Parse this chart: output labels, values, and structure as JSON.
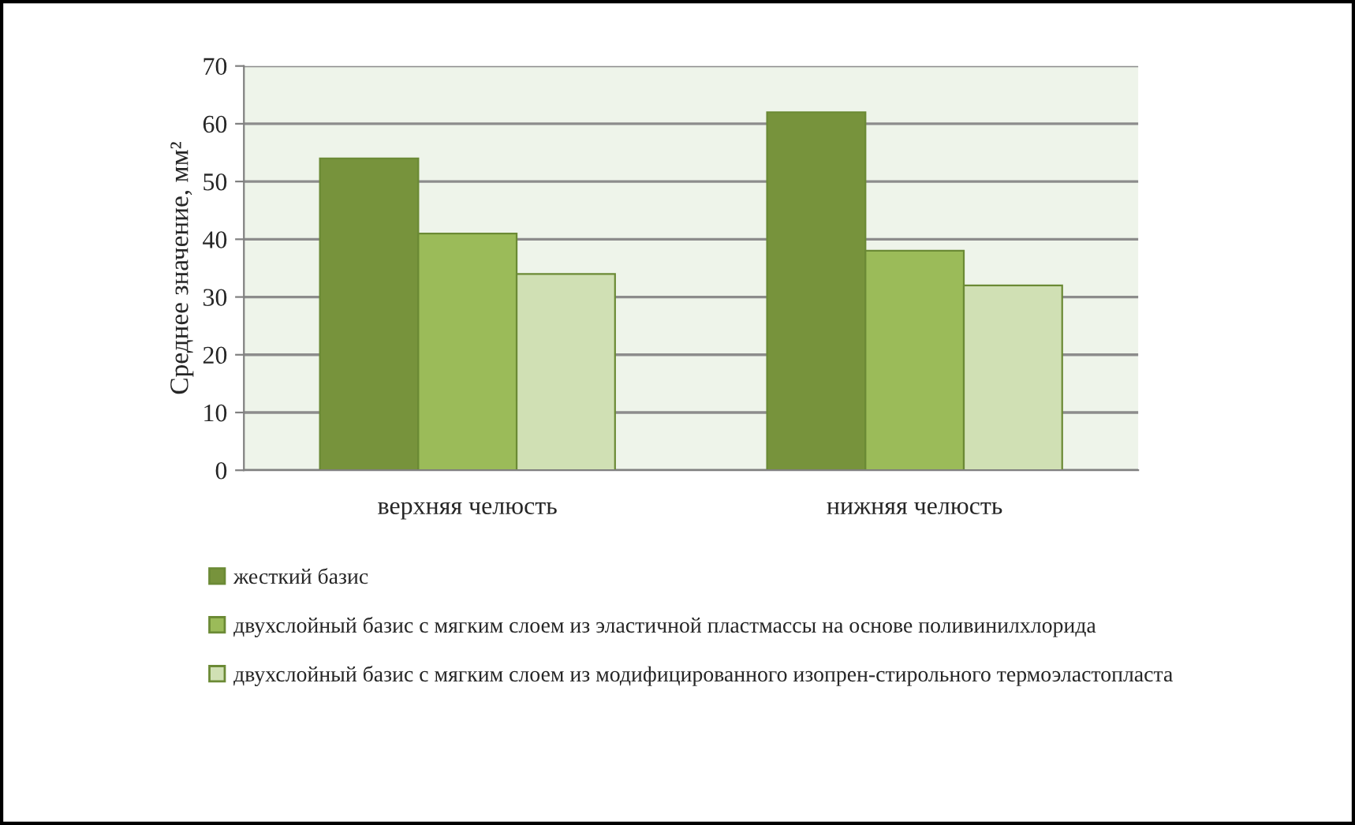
{
  "chart_data": {
    "type": "bar",
    "ylabel": "Среднее значение, мм²",
    "categories": [
      "верхняя челюсть",
      "нижняя челюсть"
    ],
    "series": [
      {
        "name": "жесткий базис",
        "color": "#77933c",
        "values": [
          54,
          62
        ]
      },
      {
        "name": "двухслойный базис с мягким слоем из эластичной пластмассы на основе поливинилхлорида",
        "color": "#9bbb59",
        "values": [
          41,
          38
        ]
      },
      {
        "name": "двухслойный базис с мягким слоем из модифицированного изопрен-стирольного термоэластопласта",
        "color": "#d0e0b4",
        "values": [
          34,
          32
        ]
      }
    ],
    "ylim": [
      0,
      70
    ],
    "yticks": [
      0,
      10,
      20,
      30,
      40,
      50,
      60,
      70
    ],
    "grid": "y",
    "legend": "bottom"
  }
}
